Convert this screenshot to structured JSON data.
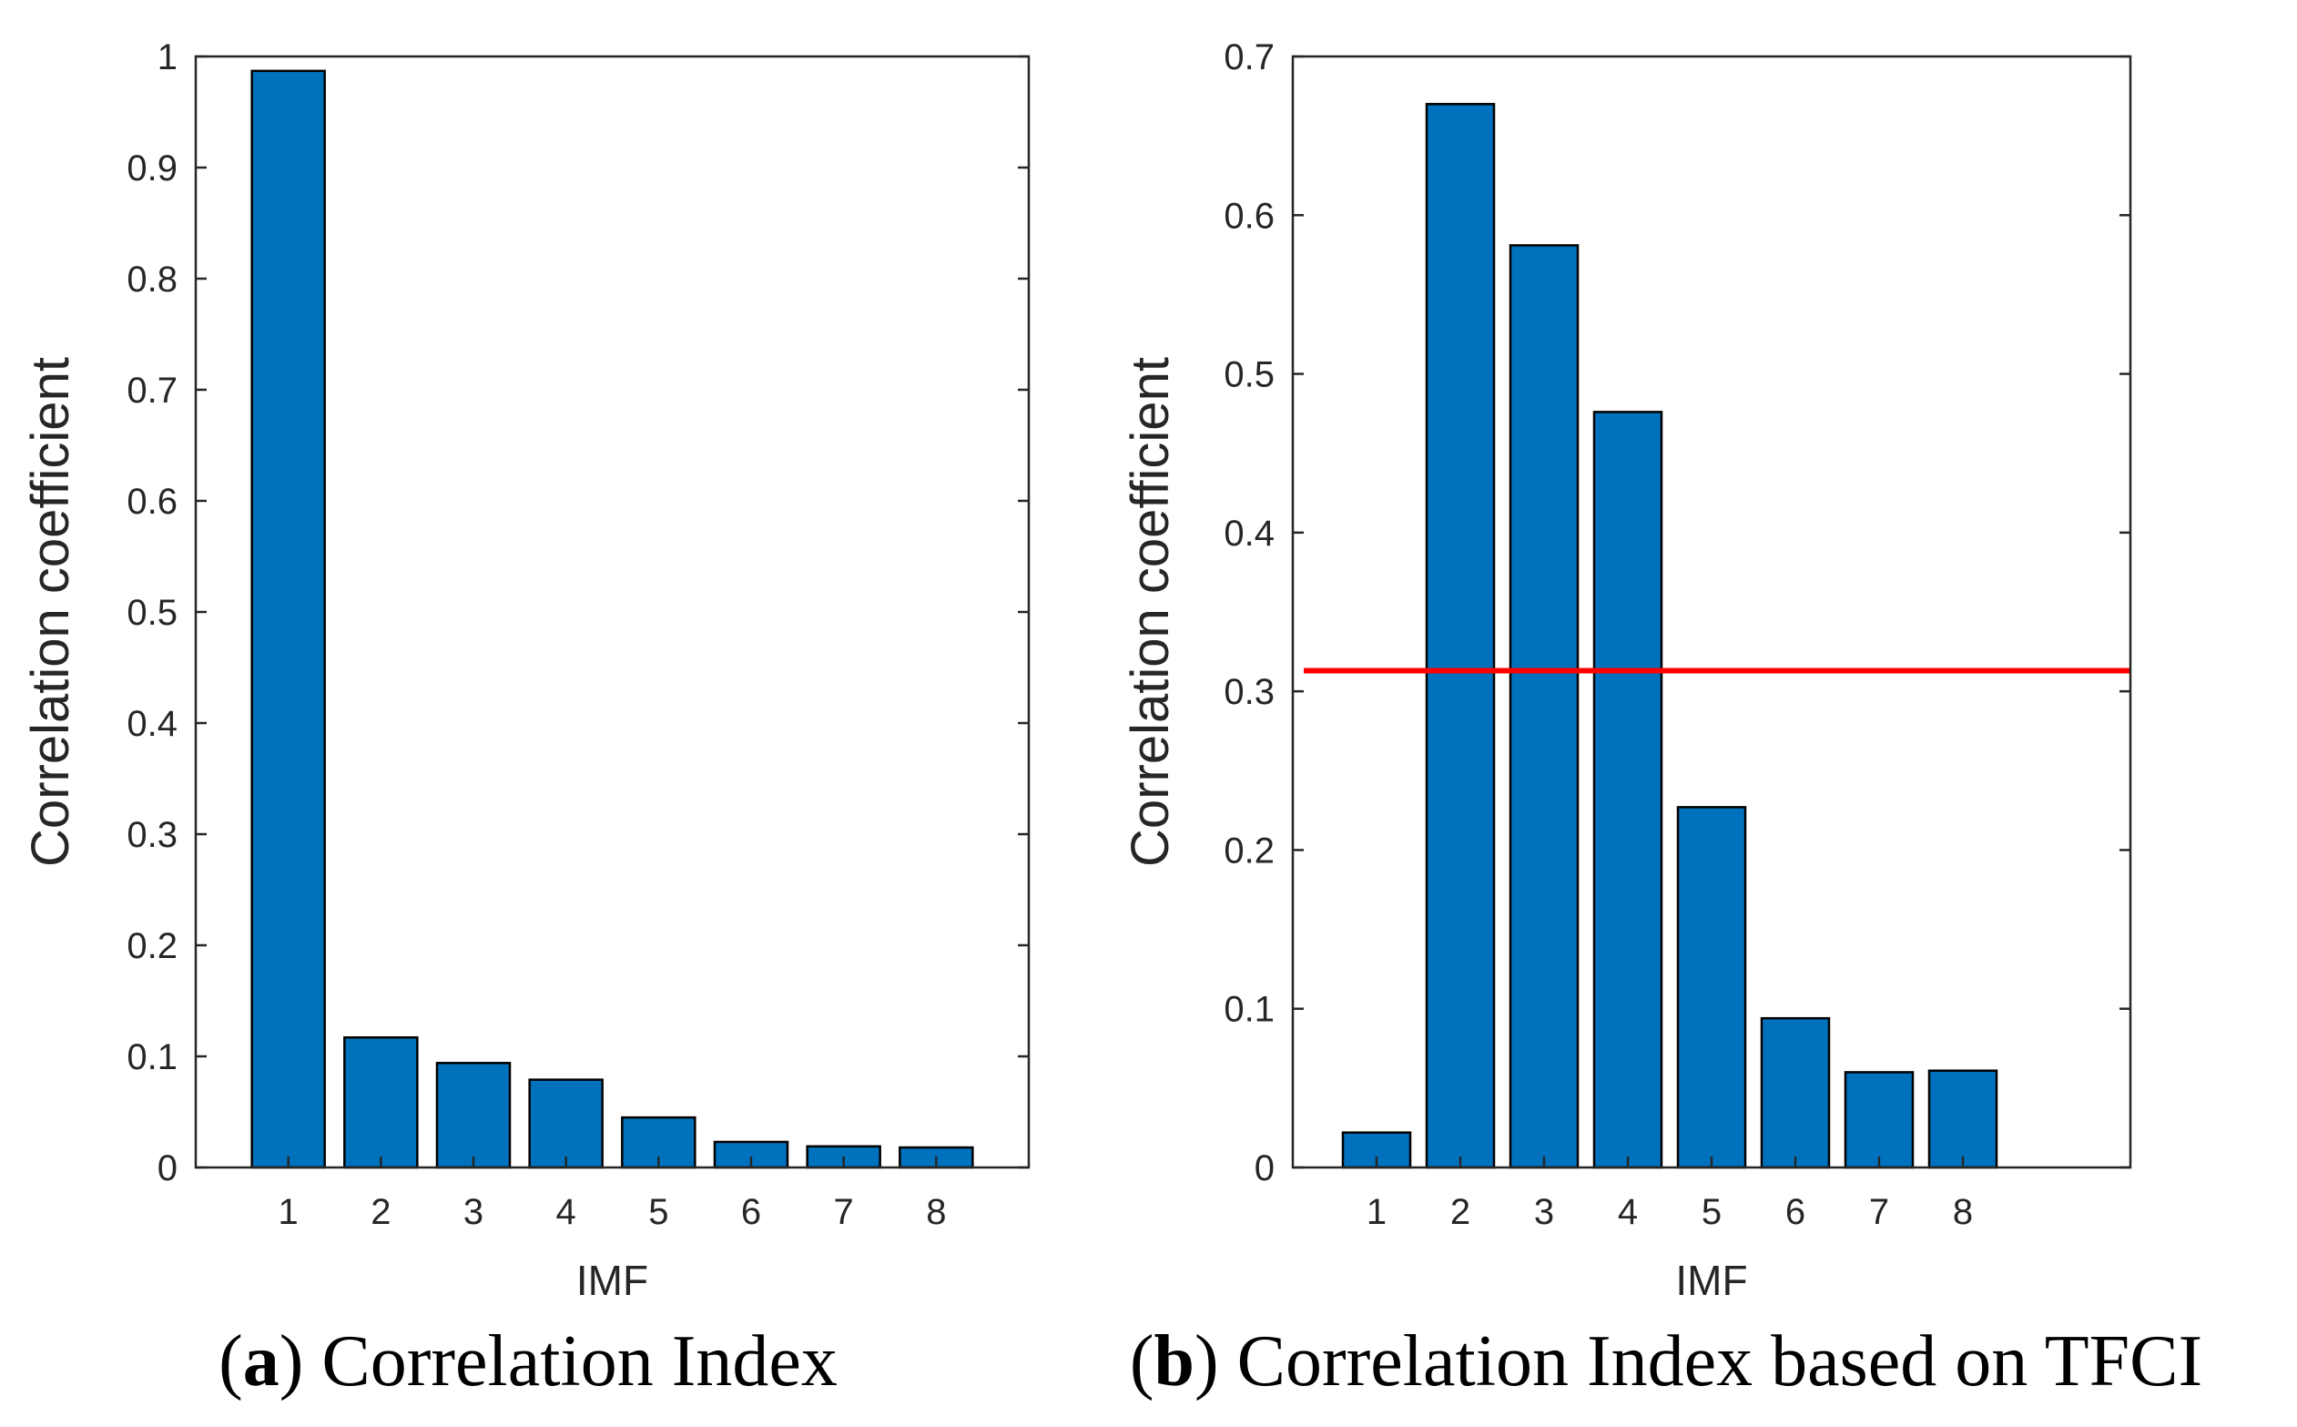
{
  "chart_data": [
    {
      "type": "bar",
      "categories": [
        "1",
        "2",
        "3",
        "4",
        "5",
        "6",
        "7",
        "8"
      ],
      "values": [
        0.987,
        0.117,
        0.094,
        0.079,
        0.045,
        0.023,
        0.019,
        0.018
      ],
      "xlabel": "IMF",
      "ylabel": "Correlation coefficient",
      "ylim": [
        0,
        1
      ],
      "yticks": [
        "0",
        "0.1",
        "0.2",
        "0.3",
        "0.4",
        "0.5",
        "0.6",
        "0.7",
        "0.8",
        "0.9",
        "1"
      ],
      "xlim": [
        0,
        9
      ],
      "bar_color": "#0072BD",
      "caption_letter": "a",
      "caption_text": "Correlation Index"
    },
    {
      "type": "bar",
      "categories": [
        "1",
        "2",
        "3",
        "4",
        "5",
        "6",
        "7",
        "8"
      ],
      "values": [
        0.022,
        0.67,
        0.581,
        0.476,
        0.227,
        0.094,
        0.06,
        0.061
      ],
      "xlabel": "IMF",
      "ylabel": "Correlation coefficient",
      "ylim": [
        0,
        0.7
      ],
      "yticks": [
        "0",
        "0.1",
        "0.2",
        "0.3",
        "0.4",
        "0.5",
        "0.6",
        "0.7"
      ],
      "xlim": [
        0,
        10
      ],
      "bar_color": "#0072BD",
      "threshold": 0.313,
      "threshold_color": "#FF0000",
      "caption_letter": "b",
      "caption_text": "Correlation Index based on TFCI"
    }
  ]
}
